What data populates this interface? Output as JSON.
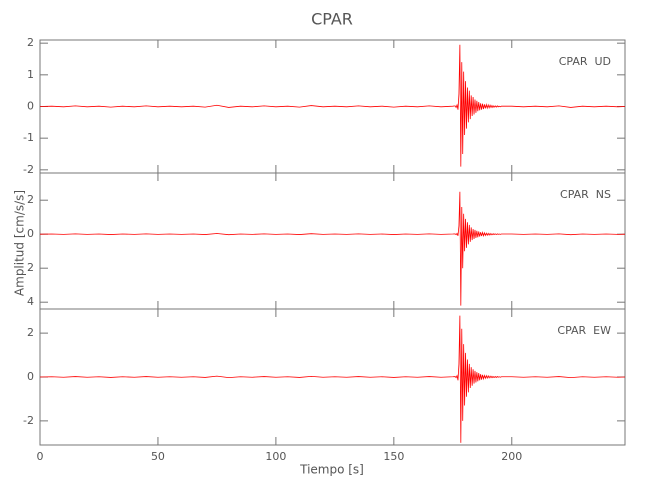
{
  "chart_data": {
    "type": "line",
    "title": "CPAR",
    "xlabel": "Tiempo [s]",
    "ylabel": "Amplitud [cm/s/s]",
    "color": "#ff0000",
    "xlim": [
      0,
      248
    ],
    "xticks": [
      0,
      50,
      100,
      150,
      200
    ],
    "x": [
      0,
      5,
      10,
      15,
      20,
      25,
      30,
      35,
      40,
      45,
      50,
      55,
      60,
      65,
      70,
      75,
      80,
      85,
      90,
      95,
      100,
      105,
      110,
      115,
      120,
      125,
      130,
      135,
      140,
      145,
      150,
      155,
      160,
      165,
      170,
      175,
      176,
      176.4,
      176.8,
      177.2,
      177.6,
      178,
      178.4,
      178.8,
      179.2,
      179.6,
      180,
      180.4,
      180.8,
      181.2,
      181.6,
      182,
      182.4,
      182.8,
      183.2,
      183.6,
      184,
      184.4,
      184.8,
      185.2,
      185.6,
      186,
      186.4,
      186.8,
      187.2,
      187.6,
      188,
      188.4,
      188.8,
      189.2,
      189.6,
      190,
      190.4,
      190.8,
      191.2,
      191.6,
      192,
      192.4,
      192.8,
      193.2,
      193.6,
      194,
      194.4,
      194.8,
      195.2,
      195.6,
      200,
      205,
      210,
      215,
      220,
      225,
      230,
      235,
      240,
      245,
      248
    ],
    "panels": [
      {
        "label": "CPAR  UD",
        "ylim": [
          -2.1,
          2.1
        ],
        "yticks": [
          -2,
          -1,
          0,
          1,
          2
        ],
        "values": [
          0,
          0.01,
          -0.01,
          0.02,
          -0.01,
          0.01,
          -0.02,
          0.01,
          -0.01,
          0.02,
          -0.01,
          0.01,
          -0.01,
          0.01,
          -0.02,
          0.04,
          -0.03,
          0.01,
          -0.01,
          0.02,
          -0.01,
          0.01,
          -0.02,
          0.03,
          -0.01,
          0.01,
          -0.01,
          0.02,
          -0.01,
          0.01,
          -0.02,
          0.01,
          -0.01,
          0.02,
          -0.01,
          0.01,
          0.02,
          -0.03,
          0.05,
          -0.1,
          0.4,
          1.95,
          -1.9,
          1.4,
          -1.5,
          1.1,
          -0.9,
          0.8,
          -0.7,
          0.6,
          -0.5,
          0.5,
          -0.4,
          0.35,
          -0.3,
          0.3,
          -0.25,
          0.22,
          -0.2,
          0.18,
          -0.15,
          0.14,
          -0.12,
          0.1,
          -0.1,
          0.09,
          -0.08,
          0.07,
          -0.06,
          0.06,
          -0.05,
          0.05,
          -0.04,
          0.04,
          -0.03,
          0.03,
          -0.03,
          0.02,
          -0.02,
          0.02,
          -0.02,
          0.02,
          -0.01,
          0.01,
          -0.01,
          0.01,
          0.01,
          -0.01,
          0.01,
          -0.01,
          0.02,
          -0.03,
          0.01,
          -0.01,
          0.01,
          -0.01,
          0
        ]
      },
      {
        "label": "CPAR  NS",
        "ylim": [
          -4.4,
          3.6
        ],
        "yticks": [
          {
            "value": -4,
            "label": "4"
          },
          {
            "value": -2,
            "label": "2"
          },
          0,
          2
        ],
        "values": [
          0,
          0.01,
          -0.01,
          0.02,
          -0.01,
          0.01,
          -0.02,
          0.01,
          -0.01,
          0.02,
          -0.01,
          0.01,
          -0.01,
          0.01,
          -0.02,
          0.04,
          -0.03,
          0.01,
          -0.01,
          0.02,
          -0.01,
          0.01,
          -0.02,
          0.03,
          -0.01,
          0.01,
          -0.01,
          0.02,
          -0.01,
          0.01,
          -0.02,
          0.01,
          -0.01,
          0.02,
          -0.01,
          0.01,
          0.02,
          -0.03,
          0.05,
          -0.1,
          0.5,
          2.5,
          -4.2,
          1.6,
          -2.0,
          1.2,
          -1.0,
          0.9,
          -0.8,
          0.7,
          -0.6,
          0.55,
          -0.45,
          0.4,
          -0.35,
          0.3,
          -0.28,
          0.25,
          -0.22,
          0.2,
          -0.18,
          0.16,
          -0.14,
          0.12,
          -0.11,
          0.1,
          -0.09,
          0.08,
          -0.07,
          0.06,
          -0.06,
          0.05,
          -0.05,
          0.04,
          -0.04,
          0.03,
          -0.03,
          0.03,
          -0.02,
          0.02,
          -0.02,
          0.02,
          -0.01,
          0.01,
          -0.01,
          0.01,
          0.01,
          -0.01,
          0.01,
          -0.01,
          0.02,
          -0.03,
          0.01,
          -0.01,
          0.01,
          -0.01,
          0
        ]
      },
      {
        "label": "CPAR  EW",
        "ylim": [
          -3.1,
          3.1
        ],
        "yticks": [
          -2,
          0,
          2
        ],
        "values": [
          0,
          0.01,
          -0.01,
          0.02,
          -0.01,
          0.01,
          -0.02,
          0.01,
          -0.01,
          0.02,
          -0.01,
          0.01,
          -0.01,
          0.01,
          -0.02,
          0.04,
          -0.03,
          0.01,
          -0.01,
          0.02,
          -0.01,
          0.01,
          -0.02,
          0.03,
          -0.01,
          0.01,
          -0.01,
          0.02,
          -0.01,
          0.01,
          -0.02,
          0.01,
          -0.01,
          0.02,
          -0.01,
          0.01,
          0.02,
          -0.03,
          0.06,
          -0.15,
          0.6,
          2.8,
          -3.0,
          2.2,
          -2.0,
          1.5,
          -1.3,
          1.1,
          -0.9,
          0.8,
          -0.7,
          0.6,
          -0.5,
          0.45,
          -0.4,
          0.35,
          -0.3,
          0.28,
          -0.25,
          0.22,
          -0.2,
          0.18,
          -0.15,
          0.13,
          -0.12,
          0.1,
          -0.08,
          0.07,
          -0.06,
          0.06,
          -0.05,
          0.05,
          -0.04,
          0.04,
          -0.03,
          0.03,
          -0.03,
          0.02,
          -0.02,
          0.02,
          -0.02,
          0.02,
          -0.01,
          0.01,
          -0.01,
          0.01,
          0.01,
          -0.01,
          0.01,
          -0.01,
          0.02,
          -0.03,
          0.01,
          -0.01,
          0.01,
          -0.01,
          0
        ]
      }
    ]
  }
}
